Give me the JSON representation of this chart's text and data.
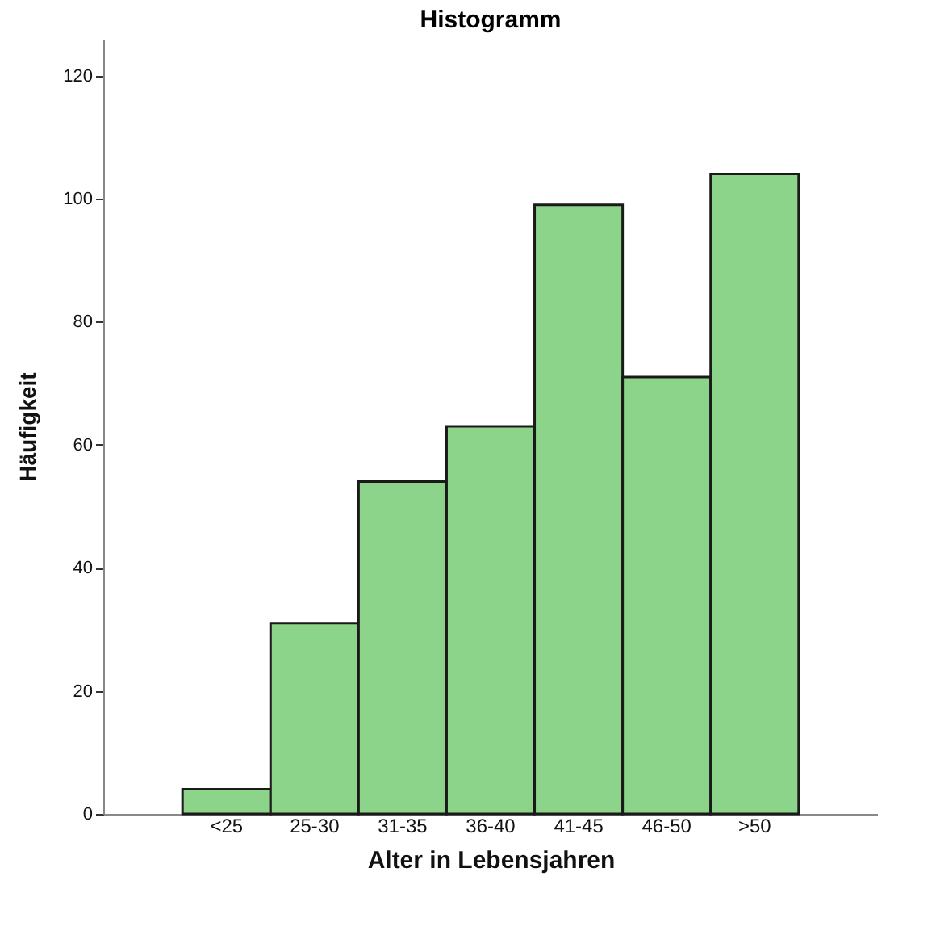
{
  "chart_data": {
    "type": "bar",
    "title": "Histogramm",
    "xlabel": "Alter in Lebensjahren",
    "ylabel": "Häufigkeit",
    "categories": [
      "<25",
      "25-30",
      "31-35",
      "36-40",
      "41-45",
      "46-50",
      ">50"
    ],
    "values": [
      4,
      31,
      54,
      63,
      99,
      71,
      104
    ],
    "color": "#8cd48a",
    "ylim": [
      0,
      126
    ],
    "yticks": [
      0,
      20,
      40,
      60,
      80,
      100,
      120
    ],
    "grid": false
  }
}
